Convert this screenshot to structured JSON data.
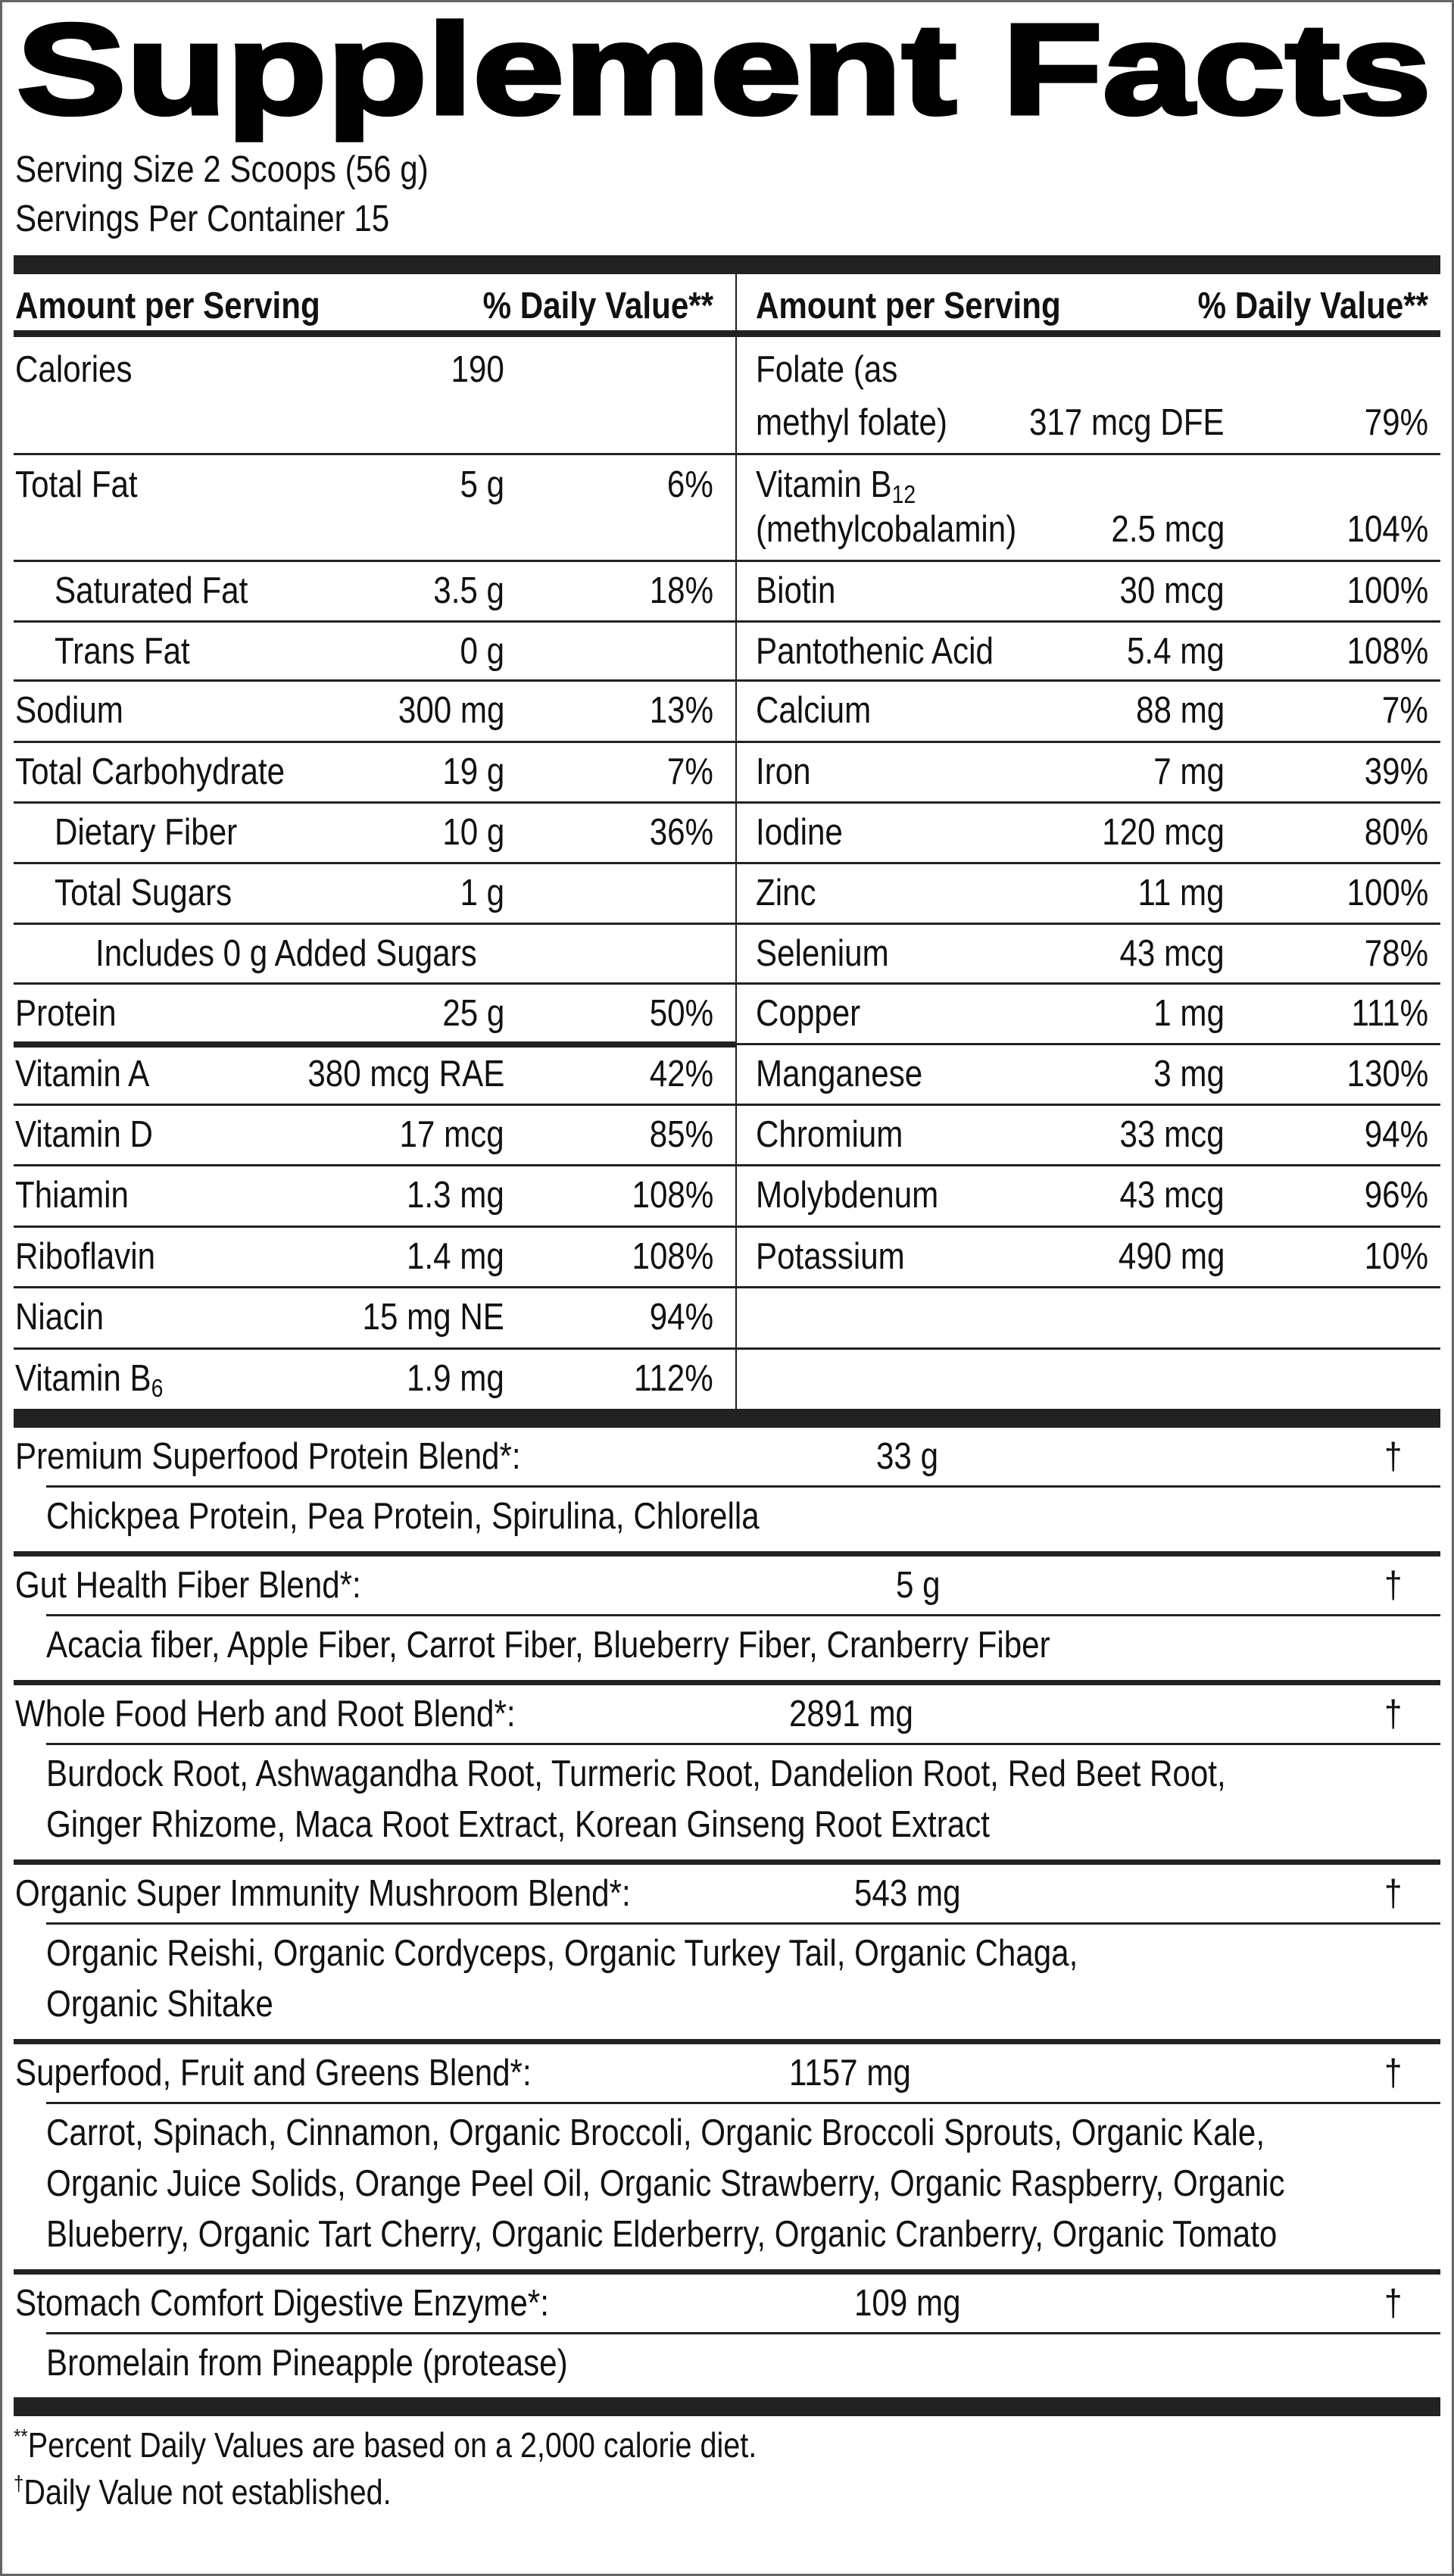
{
  "title": "Supplement Facts",
  "serving_size": "Serving Size 2 Scoops (56 g)",
  "servings_per_container": "Servings Per Container 15",
  "header": {
    "left_amount": "Amount per Serving",
    "left_dv": "% Daily Value**",
    "right_amount": "Amount per Serving",
    "right_dv": "% Daily Value**"
  },
  "left_nutrients": [
    {
      "name_lines": [
        "Calories"
      ],
      "amount": "190",
      "dv": "",
      "level": 0
    },
    {
      "name_lines": [
        "Total Fat"
      ],
      "amount": "5 g",
      "dv": "6%",
      "level": 0
    },
    {
      "name_lines": [
        "Saturated Fat"
      ],
      "amount": "3.5 g",
      "dv": "18%",
      "level": 1
    },
    {
      "name_lines": [
        "Trans Fat"
      ],
      "amount": "0 g",
      "dv": "",
      "level": 1
    },
    {
      "name_lines": [
        "Sodium"
      ],
      "amount": "300 mg",
      "dv": "13%",
      "level": 0
    },
    {
      "name_lines": [
        "Total Carbohydrate"
      ],
      "amount": "19 g",
      "dv": "7%",
      "level": 0
    },
    {
      "name_lines": [
        "Dietary Fiber"
      ],
      "amount": "10 g",
      "dv": "36%",
      "level": 1
    },
    {
      "name_lines": [
        "Total Sugars"
      ],
      "amount": "1 g",
      "dv": "",
      "level": 1
    },
    {
      "name_lines": [
        "Includes 0 g Added Sugars"
      ],
      "amount": "",
      "dv": "",
      "level": 2
    },
    {
      "name_lines": [
        "Protein"
      ],
      "amount": "25 g",
      "dv": "50%",
      "level": 0
    },
    {
      "name_lines": [
        "Vitamin A"
      ],
      "amount": "380 mcg RAE",
      "dv": "42%",
      "level": 0
    },
    {
      "name_lines": [
        "Vitamin D"
      ],
      "amount": "17 mcg",
      "dv": "85%",
      "level": 0
    },
    {
      "name_lines": [
        "Thiamin"
      ],
      "amount": "1.3 mg",
      "dv": "108%",
      "level": 0
    },
    {
      "name_lines": [
        "Riboflavin"
      ],
      "amount": "1.4 mg",
      "dv": "108%",
      "level": 0
    },
    {
      "name_lines": [
        "Niacin"
      ],
      "amount": "15 mg NE",
      "dv": "94%",
      "level": 0
    },
    {
      "name_lines": [
        "Vitamin B"
      ],
      "sub": "6",
      "amount": "1.9 mg",
      "dv": "112%",
      "level": 0
    }
  ],
  "right_nutrients": [
    {
      "name_lines": [
        "Folate (as",
        "methyl folate)"
      ],
      "amount": "317 mcg DFE",
      "dv": "79%"
    },
    {
      "name_lines": [
        "Vitamin B",
        "(methylcobalamin)"
      ],
      "sub": "12",
      "amount": "2.5 mcg",
      "dv": "104%"
    },
    {
      "name_lines": [
        "Biotin"
      ],
      "amount": "30 mcg",
      "dv": "100%"
    },
    {
      "name_lines": [
        "Pantothenic Acid"
      ],
      "amount": "5.4 mg",
      "dv": "108%"
    },
    {
      "name_lines": [
        "Calcium"
      ],
      "amount": "88 mg",
      "dv": "7%"
    },
    {
      "name_lines": [
        "Iron"
      ],
      "amount": "7 mg",
      "dv": "39%"
    },
    {
      "name_lines": [
        "Iodine"
      ],
      "amount": "120 mcg",
      "dv": "80%"
    },
    {
      "name_lines": [
        "Zinc"
      ],
      "amount": "11 mg",
      "dv": "100%"
    },
    {
      "name_lines": [
        "Selenium"
      ],
      "amount": "43 mcg",
      "dv": "78%"
    },
    {
      "name_lines": [
        "Copper"
      ],
      "amount": "1 mg",
      "dv": "111%"
    },
    {
      "name_lines": [
        "Manganese"
      ],
      "amount": "3 mg",
      "dv": "130%"
    },
    {
      "name_lines": [
        "Chromium"
      ],
      "amount": "33 mcg",
      "dv": "94%"
    },
    {
      "name_lines": [
        "Molybdenum"
      ],
      "amount": "43 mcg",
      "dv": "96%"
    },
    {
      "name_lines": [
        "Potassium"
      ],
      "amount": "490 mg",
      "dv": "10%"
    }
  ],
  "blends": [
    {
      "name": "Premium Superfood Protein Blend*:",
      "amount": "33 g",
      "dv": "†",
      "ingredients": [
        "Chickpea Protein, Pea Protein, Spirulina, Chlorella"
      ]
    },
    {
      "name": "Gut Health Fiber Blend*:",
      "amount": "5 g",
      "dv": "†",
      "ingredients": [
        "Acacia fiber, Apple Fiber, Carrot Fiber, Blueberry Fiber, Cranberry Fiber"
      ]
    },
    {
      "name": "Whole Food Herb and Root Blend*:",
      "amount": "2891 mg",
      "dv": "†",
      "ingredients": [
        "Burdock Root, Ashwagandha Root, Turmeric Root, Dandelion Root, Red Beet Root,",
        "Ginger Rhizome, Maca Root Extract, Korean Ginseng Root Extract"
      ]
    },
    {
      "name": "Organic Super Immunity Mushroom Blend*:",
      "amount": "543 mg",
      "dv": "†",
      "ingredients": [
        "Organic Reishi, Organic Cordyceps, Organic Turkey Tail, Organic Chaga,",
        "Organic Shitake"
      ]
    },
    {
      "name": "Superfood, Fruit and Greens Blend*:",
      "amount": "1157 mg",
      "dv": "†",
      "ingredients": [
        "Carrot, Spinach, Cinnamon, Organic Broccoli, Organic Broccoli Sprouts, Organic Kale,",
        "Organic Juice Solids, Orange Peel Oil, Organic Strawberry, Organic Raspberry, Organic",
        "Blueberry, Organic Tart Cherry, Organic Elderberry, Organic Cranberry, Organic Tomato"
      ]
    },
    {
      "name": "Stomach Comfort Digestive Enzyme*:",
      "amount": "109 mg",
      "dv": "†",
      "ingredients": [
        "Bromelain from Pineapple (protease)"
      ]
    }
  ],
  "footnotes": [
    {
      "mark": "**",
      "text": "Percent Daily Values are based on a 2,000 calorie diet."
    },
    {
      "mark": "†",
      "text": "Daily Value not established."
    }
  ]
}
